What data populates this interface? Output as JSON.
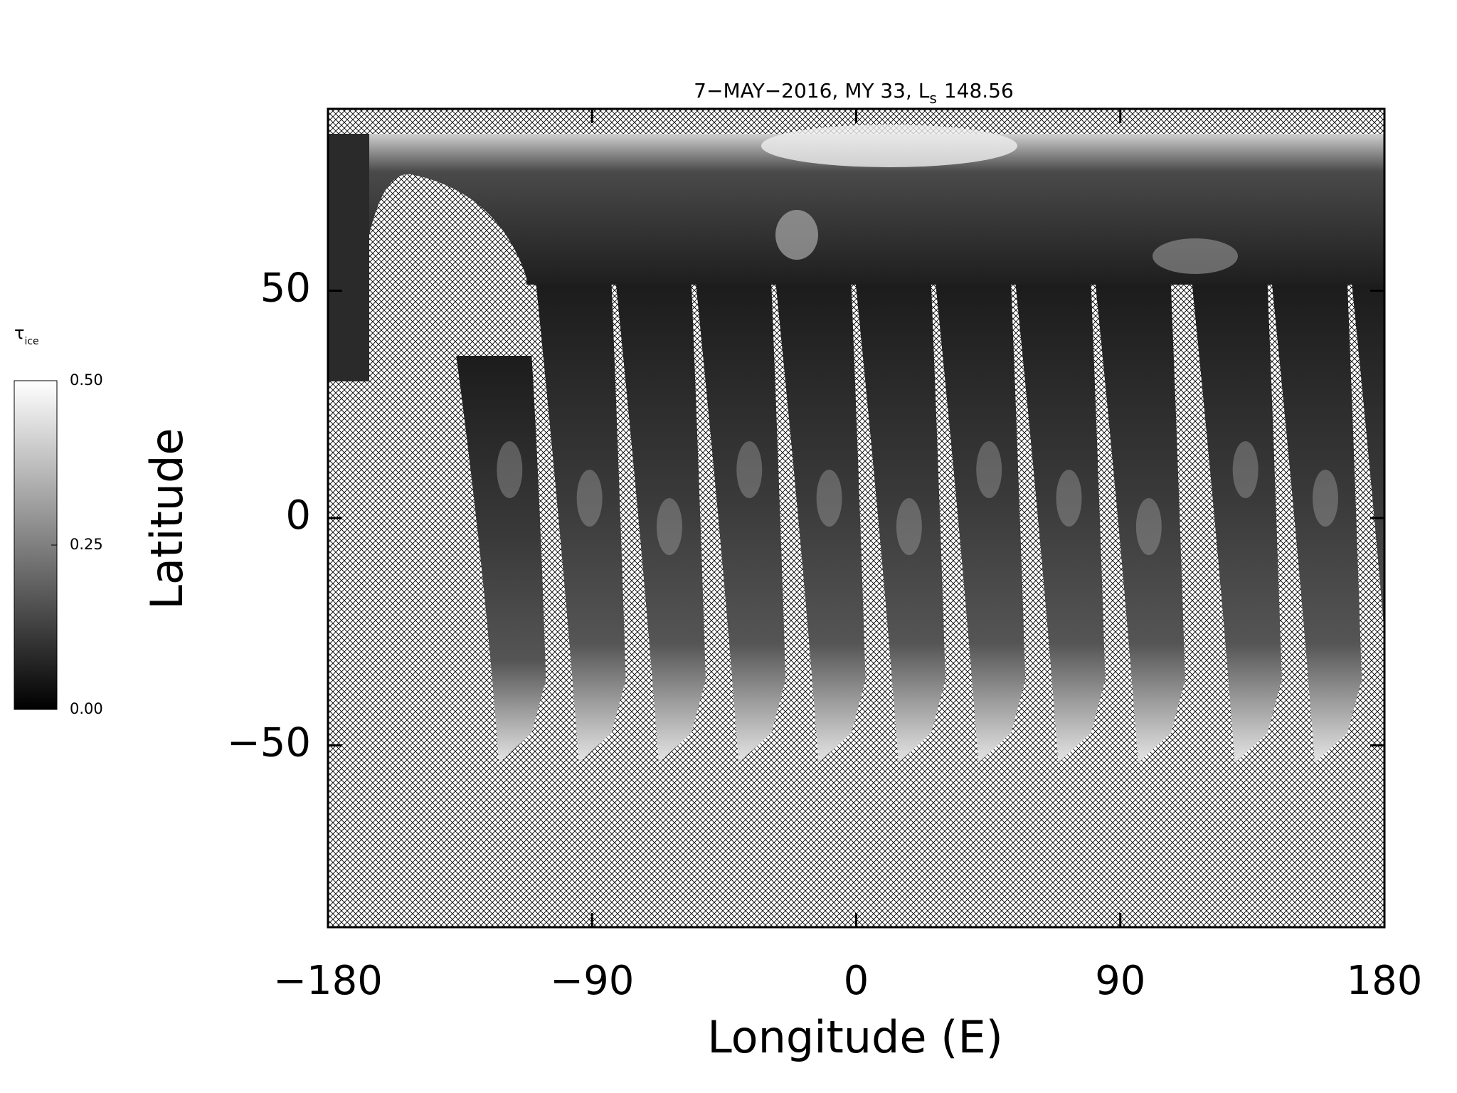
{
  "chart_data": {
    "type": "map",
    "title": "7−MAY−2016, MY 33,  L",
    "title_subscript": "s",
    "title_suffix": "148.56",
    "xlabel": "Longitude (E)",
    "ylabel": "Latitude",
    "xlim": [
      -180,
      180
    ],
    "ylim": [
      -90,
      90
    ],
    "xticks": [
      {
        "value": -180,
        "label": "−180"
      },
      {
        "value": -90,
        "label": "−90"
      },
      0,
      90,
      180
    ],
    "yticks": [
      {
        "value": -50,
        "label": "−50"
      },
      0,
      50
    ],
    "colorbar": {
      "label": "τ",
      "label_subscript": "ice",
      "lim": [
        0,
        0.5
      ],
      "ticks": [
        {
          "value": 0,
          "label": "0.00"
        },
        {
          "value": 0.25,
          "label": "0.25"
        },
        {
          "value": 0.5,
          "label": "0.50"
        }
      ]
    }
  }
}
